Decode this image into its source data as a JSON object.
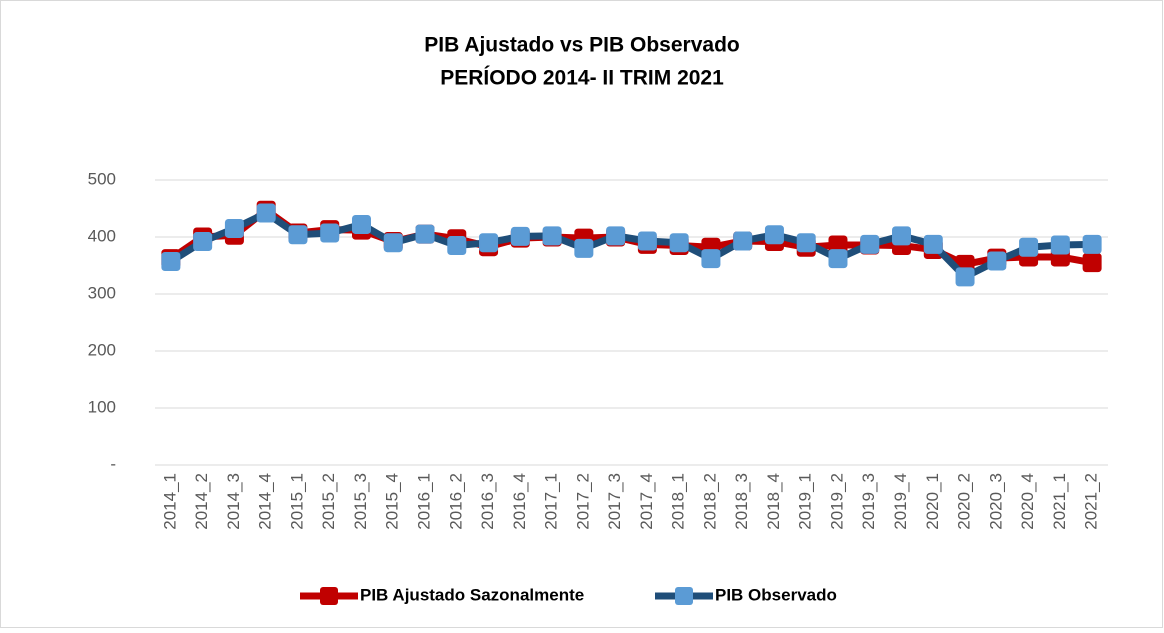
{
  "chart_data": {
    "type": "line",
    "title": "PIB Ajustado vs PIB Observado",
    "subtitle": "PERÍODO 2014- II TRIM 2021",
    "categories": [
      "2014_1",
      "2014_2",
      "2014_3",
      "2014_4",
      "2015_1",
      "2015_2",
      "2015_3",
      "2015_4",
      "2016_1",
      "2016_2",
      "2016_3",
      "2016_4",
      "2017_1",
      "2017_2",
      "2017_3",
      "2017_4",
      "2018_1",
      "2018_2",
      "2018_3",
      "2018_4",
      "2019_1",
      "2019_2",
      "2019_3",
      "2019_4",
      "2020_1",
      "2020_2",
      "2020_3",
      "2020_4",
      "2021_1",
      "2021_2"
    ],
    "series": [
      {
        "name": "PIB Ajustado Sazonalmente",
        "color": "#c00000",
        "line_color": "#c00000",
        "values": [
          362,
          400,
          403,
          447,
          407,
          413,
          412,
          392,
          405,
          397,
          383,
          398,
          400,
          398,
          400,
          387,
          385,
          382,
          393,
          392,
          382,
          386,
          386,
          385,
          378,
          352,
          363,
          365,
          365,
          355
        ]
      },
      {
        "name": "PIB Observado",
        "color": "#5b9bd5",
        "line_color": "#1f4e79",
        "values": [
          357,
          392,
          415,
          442,
          404,
          407,
          422,
          390,
          405,
          385,
          390,
          401,
          402,
          380,
          402,
          393,
          390,
          362,
          393,
          404,
          390,
          362,
          387,
          402,
          387,
          330,
          358,
          382,
          386,
          387
        ]
      }
    ],
    "ylim": [
      0,
      500
    ],
    "yticks": [
      {
        "value": 0,
        "label": "-"
      },
      100,
      200,
      300,
      400,
      500
    ],
    "grid": true,
    "legend": "bottom"
  }
}
